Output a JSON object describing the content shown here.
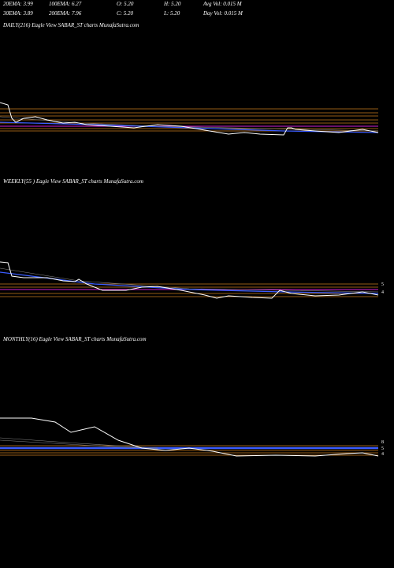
{
  "header": {
    "row1": [
      "20EMA: 3.99",
      "100EMA: 6.27",
      "O: 5.20",
      "H: 5.20",
      "Avg Vol: 0.015 M"
    ],
    "row2": [
      "30EMA: 3.89",
      "200EMA: 7.96",
      "C: 5.20",
      "L: 5.20",
      "Day Vol: 0.015 M"
    ]
  },
  "panels": [
    {
      "label": "DAILY(216) Eagle  View  SABAR_ST charts MunafaSutra.com"
    },
    {
      "label": "WEEKLY(55                    ) Eagle  View  SABAR_ST charts MunafaSutra.com",
      "levels": [
        "5",
        "4"
      ]
    },
    {
      "label": "MONTHLY(16) Eagle  View  SABAR_ST charts MunafaSutra.com",
      "levels": [
        "8",
        "5",
        "4"
      ]
    }
  ]
}
